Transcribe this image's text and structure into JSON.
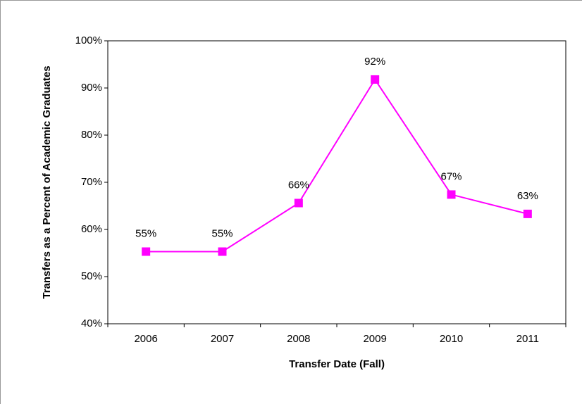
{
  "chart_data": {
    "type": "line",
    "x_label": "Transfer Date (Fall)",
    "y_label": "Transfers as a Percent of Academic Graduates",
    "categories": [
      "2006",
      "2007",
      "2008",
      "2009",
      "2010",
      "2011"
    ],
    "series": [
      {
        "color": "#ff00ff",
        "values": [
          55.3,
          55.3,
          65.6,
          91.8,
          67.4,
          63.3
        ],
        "value_labels": [
          "55%",
          "55%",
          "66%",
          "92%",
          "67%",
          "63%"
        ]
      }
    ],
    "ylim": [
      40,
      100
    ],
    "yticks": [
      {
        "value": 40,
        "label": "40%"
      },
      {
        "value": 50,
        "label": "50%"
      },
      {
        "value": 60,
        "label": "60%"
      },
      {
        "value": 70,
        "label": "70%"
      },
      {
        "value": 80,
        "label": "80%"
      },
      {
        "value": 90,
        "label": "90%"
      },
      {
        "value": 100,
        "label": "100%"
      }
    ],
    "grid": false
  }
}
